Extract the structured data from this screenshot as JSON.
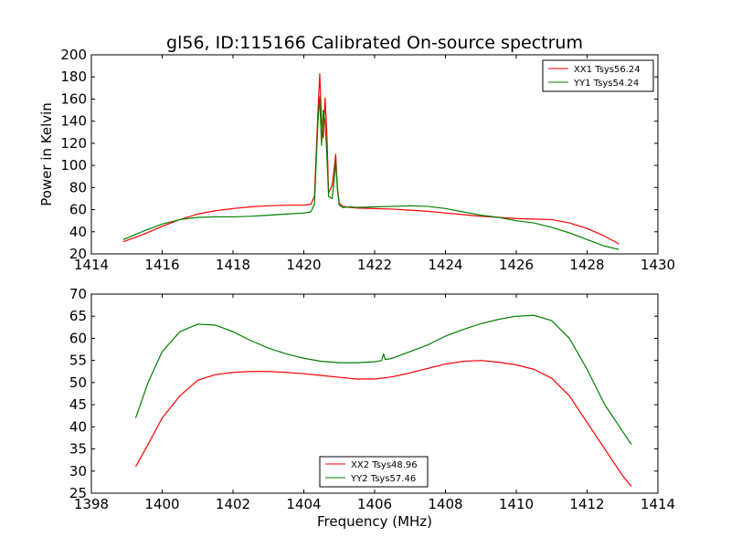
{
  "chart_data": [
    {
      "type": "line",
      "title": "gl56, ID:115166 Calibrated On-source spectrum",
      "xlabel": "",
      "ylabel": "Power in Kelvin",
      "xlim": [
        1414,
        1430
      ],
      "ylim": [
        20,
        200
      ],
      "xticks": [
        "1414",
        "1416",
        "1418",
        "1420",
        "1422",
        "1424",
        "1426",
        "1428",
        "1430"
      ],
      "yticks": [
        "20",
        "40",
        "60",
        "80",
        "100",
        "120",
        "140",
        "160",
        "180",
        "200"
      ],
      "grid": false,
      "legend_position": "top-right",
      "series": [
        {
          "name": "XX1 Tsys56.24",
          "color": "#ff0000",
          "x": [
            1414.9,
            1415.5,
            1416.0,
            1416.5,
            1417.0,
            1417.5,
            1418.0,
            1418.5,
            1419.0,
            1419.5,
            1420.0,
            1420.2,
            1420.3,
            1420.4,
            1420.45,
            1420.5,
            1420.55,
            1420.6,
            1420.65,
            1420.7,
            1420.8,
            1420.85,
            1420.9,
            1420.95,
            1421.0,
            1421.1,
            1421.3,
            1421.5,
            1422.0,
            1422.5,
            1423.0,
            1423.5,
            1424.0,
            1424.5,
            1425.0,
            1425.5,
            1426.0,
            1426.5,
            1427.0,
            1427.5,
            1428.0,
            1428.5,
            1428.9
          ],
          "y": [
            31,
            38,
            45,
            51,
            56,
            59,
            61,
            62.5,
            63.5,
            64,
            64,
            65,
            72,
            150,
            183,
            140,
            125,
            161,
            130,
            75,
            82,
            95,
            110,
            80,
            66,
            63,
            62,
            61.5,
            61,
            60.5,
            59.5,
            58.5,
            57,
            55.5,
            54,
            53,
            52,
            51.5,
            51,
            48,
            43,
            36,
            29
          ]
        },
        {
          "name": "YY1 Tsys54.24",
          "color": "#008000",
          "x": [
            1414.9,
            1415.5,
            1416.0,
            1416.5,
            1417.0,
            1417.5,
            1418.0,
            1418.5,
            1419.0,
            1419.5,
            1420.0,
            1420.2,
            1420.3,
            1420.4,
            1420.45,
            1420.5,
            1420.55,
            1420.6,
            1420.65,
            1420.7,
            1420.8,
            1420.85,
            1420.9,
            1420.95,
            1421.0,
            1421.1,
            1421.3,
            1421.5,
            1422.0,
            1422.5,
            1423.0,
            1423.5,
            1424.0,
            1424.5,
            1425.0,
            1425.5,
            1426.0,
            1426.5,
            1427.0,
            1427.5,
            1428.0,
            1428.5,
            1428.9
          ],
          "y": [
            33,
            41,
            47,
            51,
            53,
            53.5,
            53.5,
            54,
            55,
            56,
            57,
            58,
            65,
            140,
            162,
            118,
            150,
            140,
            110,
            72,
            70,
            85,
            103,
            78,
            64,
            62,
            62.5,
            62,
            62.5,
            63,
            63.5,
            63,
            61,
            58,
            55,
            53,
            50,
            48,
            44,
            39,
            33,
            27,
            24
          ]
        }
      ]
    },
    {
      "type": "line",
      "title": "",
      "xlabel": "Frequency (MHz)",
      "ylabel": "",
      "xlim": [
        1398,
        1414
      ],
      "ylim": [
        25,
        70
      ],
      "xticks": [
        "1398",
        "1400",
        "1402",
        "1404",
        "1406",
        "1408",
        "1410",
        "1412",
        "1414"
      ],
      "yticks": [
        "25",
        "30",
        "35",
        "40",
        "45",
        "50",
        "55",
        "60",
        "65",
        "70"
      ],
      "grid": false,
      "legend_position": "bottom-center",
      "series": [
        {
          "name": "XX2 Tsys48.96",
          "color": "#ff0000",
          "x": [
            1399.25,
            1399.6,
            1400.0,
            1400.5,
            1401.0,
            1401.5,
            1402.0,
            1402.5,
            1403.0,
            1403.5,
            1404.0,
            1404.5,
            1405.0,
            1405.5,
            1406.0,
            1406.5,
            1407.0,
            1407.5,
            1408.0,
            1408.5,
            1409.0,
            1409.5,
            1410.0,
            1410.5,
            1411.0,
            1411.5,
            1412.0,
            1412.5,
            1413.0,
            1413.25
          ],
          "y": [
            31,
            36,
            42,
            47,
            50.5,
            51.8,
            52.3,
            52.5,
            52.5,
            52.3,
            52,
            51.6,
            51.2,
            50.8,
            50.8,
            51.3,
            52.2,
            53.2,
            54.2,
            54.8,
            55,
            54.6,
            54,
            53,
            51,
            47,
            41,
            35,
            29,
            26.5
          ]
        },
        {
          "name": "YY2 Tsys57.46",
          "color": "#008000",
          "x": [
            1399.25,
            1399.6,
            1400.0,
            1400.5,
            1401.0,
            1401.5,
            1402.0,
            1402.5,
            1403.0,
            1403.5,
            1404.0,
            1404.5,
            1405.0,
            1405.5,
            1406.0,
            1406.2,
            1406.25,
            1406.3,
            1406.5,
            1407.0,
            1407.5,
            1408.0,
            1408.5,
            1409.0,
            1409.5,
            1410.0,
            1410.5,
            1411.0,
            1411.5,
            1412.0,
            1412.5,
            1413.0,
            1413.25
          ],
          "y": [
            42,
            50,
            57,
            61.5,
            63.2,
            63,
            61.5,
            59.5,
            57.8,
            56.5,
            55.5,
            54.8,
            54.5,
            54.5,
            54.7,
            55,
            56.5,
            55.2,
            55.5,
            57,
            58.5,
            60.5,
            62,
            63.3,
            64.3,
            65,
            65.2,
            64,
            60,
            53,
            45,
            39,
            36
          ]
        }
      ]
    }
  ]
}
